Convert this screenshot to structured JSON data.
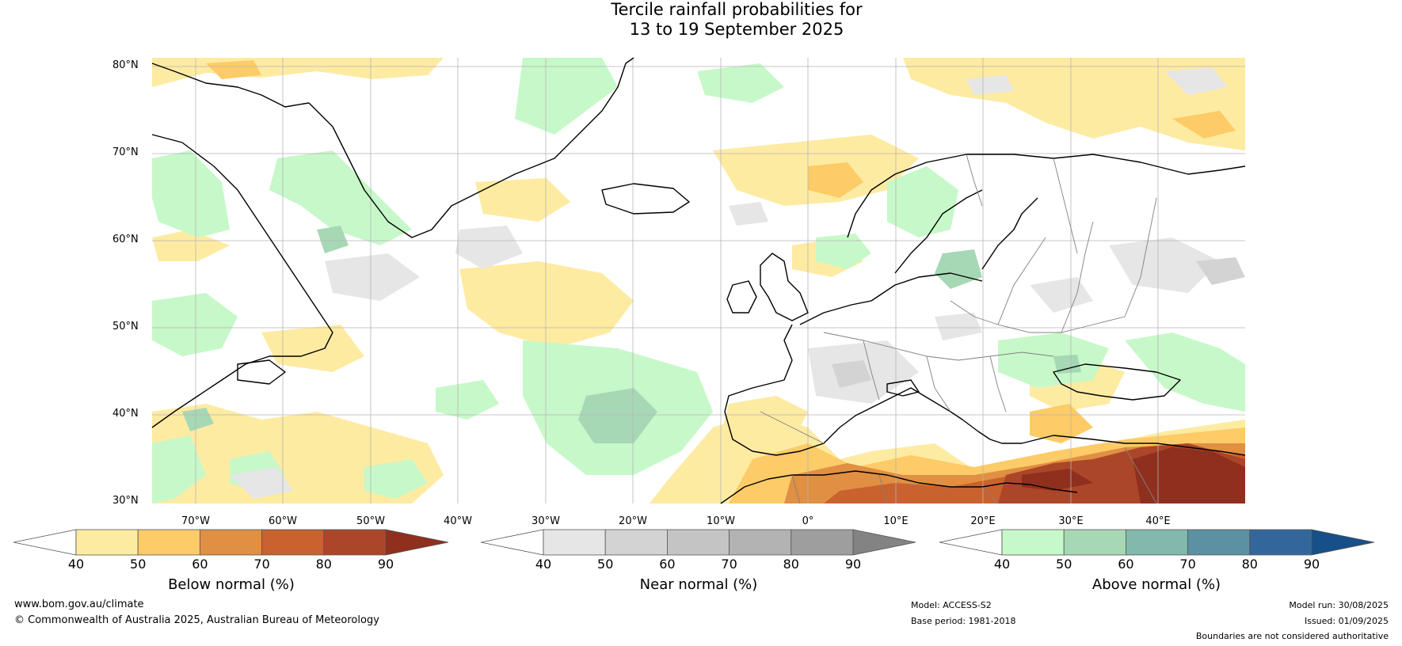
{
  "title": {
    "line1": "Tercile rainfall probabilities for",
    "line2": "13 to 19 September 2025"
  },
  "lat_labels": [
    "80°N",
    "70°N",
    "60°N",
    "50°N",
    "40°N",
    "30°N"
  ],
  "lon_labels": [
    "70°W",
    "60°W",
    "50°W",
    "40°W",
    "30°W",
    "20°W",
    "10°W",
    "0°",
    "10°E",
    "20°E",
    "30°E",
    "40°E"
  ],
  "colorbars": {
    "below": {
      "title": "Below normal (%)",
      "ticks": [
        "40",
        "50",
        "60",
        "70",
        "80",
        "90"
      ],
      "colors": [
        "#ffffff",
        "#feeba2",
        "#fdcb67",
        "#e08f43",
        "#c9622f",
        "#ab4629",
        "#8f2f1d"
      ]
    },
    "near": {
      "title": "Near normal (%)",
      "ticks": [
        "40",
        "50",
        "60",
        "70",
        "80",
        "90"
      ],
      "colors": [
        "#ffffff",
        "#e6e6e6",
        "#d3d3d3",
        "#c4c4c4",
        "#b3b3b3",
        "#9e9e9e",
        "#838383"
      ]
    },
    "above": {
      "title": "Above normal (%)",
      "ticks": [
        "40",
        "50",
        "60",
        "70",
        "80",
        "90"
      ],
      "colors": [
        "#ffffff",
        "#c7f8c9",
        "#a6d8b5",
        "#83b8ac",
        "#5b91a2",
        "#33679c",
        "#174f88"
      ]
    }
  },
  "footer": {
    "website": "www.bom.gov.au/climate",
    "copyright": "© Commonwealth of Australia 2025, Australian Bureau of Meteorology",
    "model": "Model: ACCESS-S2",
    "base_period": "Base period: 1981-2018",
    "model_run": "Model run: 30/08/2025",
    "issued": "Issued: 01/09/2025",
    "boundaries": "Boundaries are not considered authoritative"
  }
}
